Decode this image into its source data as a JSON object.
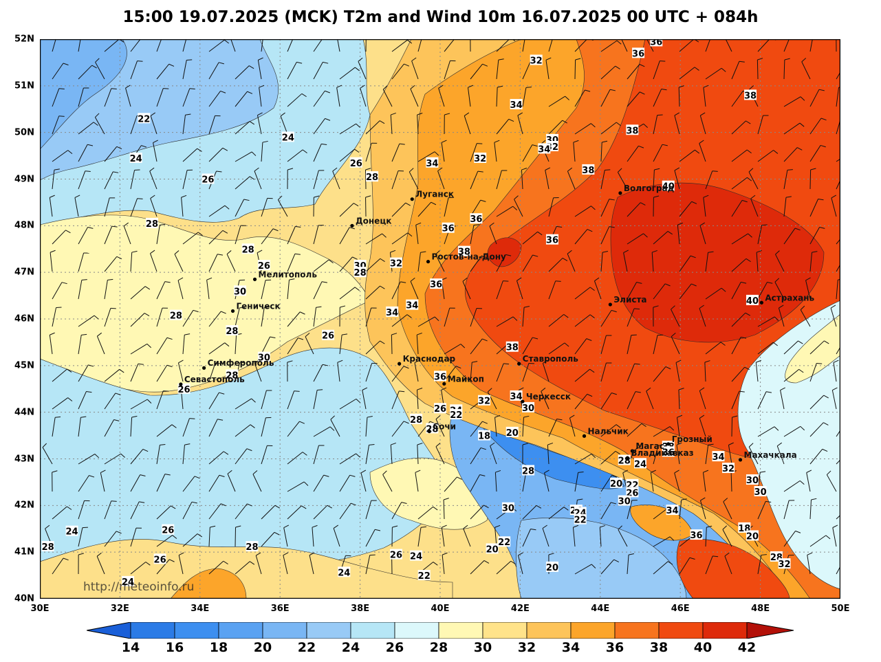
{
  "title": "15:00 19.07.2025 (MCK) T2m and Wind 10m 16.07.2025 00 UTC + 084h",
  "watermark": "http://meteoinfo.ru",
  "lat_labels": [
    "52N",
    "51N",
    "50N",
    "49N",
    "48N",
    "47N",
    "46N",
    "45N",
    "44N",
    "43N",
    "42N",
    "41N",
    "40N"
  ],
  "lon_labels": [
    "30E",
    "32E",
    "34E",
    "36E",
    "38E",
    "40E",
    "42E",
    "44E",
    "46E",
    "48E",
    "50E"
  ],
  "colorbar": {
    "labels": [
      "14",
      "16",
      "18",
      "20",
      "22",
      "24",
      "26",
      "28",
      "30",
      "32",
      "34",
      "36",
      "38",
      "40",
      "42"
    ],
    "colors": [
      "#2b7be6",
      "#3d8ff0",
      "#5aa2f2",
      "#79b6f4",
      "#98caf6",
      "#b6e6f6",
      "#dcf8fb",
      "#fff8b4",
      "#ffe38a",
      "#fdc45a",
      "#fca52a",
      "#f7741e",
      "#f04a10",
      "#de2a0a"
    ],
    "low_color": "#1a5fd8",
    "high_color": "#b31008"
  },
  "cities": [
    {
      "name": "Луганск",
      "lon": 39.3,
      "lat": 48.57
    },
    {
      "name": "Донецк",
      "lon": 37.8,
      "lat": 48.0
    },
    {
      "name": "Волгоград",
      "lon": 44.5,
      "lat": 48.7
    },
    {
      "name": "Ростов-на-Дону",
      "lon": 39.7,
      "lat": 47.23
    },
    {
      "name": "Мелитополь",
      "lon": 35.37,
      "lat": 46.85
    },
    {
      "name": "Геническ",
      "lon": 34.82,
      "lat": 46.17
    },
    {
      "name": "Элиста",
      "lon": 44.25,
      "lat": 46.31
    },
    {
      "name": "Астрахань",
      "lon": 48.03,
      "lat": 46.35
    },
    {
      "name": "Краснодар",
      "lon": 38.98,
      "lat": 45.04
    },
    {
      "name": "Ставрополь",
      "lon": 41.97,
      "lat": 45.04
    },
    {
      "name": "Симферополь",
      "lon": 34.1,
      "lat": 44.95
    },
    {
      "name": "Севастополь",
      "lon": 33.52,
      "lat": 44.6
    },
    {
      "name": "Майкоп",
      "lon": 40.1,
      "lat": 44.61
    },
    {
      "name": "Черкесск",
      "lon": 42.06,
      "lat": 44.23
    },
    {
      "name": "Нальчик",
      "lon": 43.6,
      "lat": 43.49
    },
    {
      "name": "Сочи",
      "lon": 39.73,
      "lat": 43.59
    },
    {
      "name": "Магас",
      "lon": 44.8,
      "lat": 43.17
    },
    {
      "name": "Грозный",
      "lon": 45.7,
      "lat": 43.32
    },
    {
      "name": "Владикавказ",
      "lon": 44.68,
      "lat": 43.02
    },
    {
      "name": "Махачкала",
      "lon": 47.5,
      "lat": 42.98
    }
  ],
  "contour_labels": [
    {
      "text": "22",
      "lon": 32.6,
      "lat": 50.3
    },
    {
      "text": "24",
      "lon": 32.4,
      "lat": 49.45
    },
    {
      "text": "24",
      "lon": 36.2,
      "lat": 49.9
    },
    {
      "text": "26",
      "lon": 34.2,
      "lat": 49.0
    },
    {
      "text": "26",
      "lon": 37.9,
      "lat": 49.35
    },
    {
      "text": "28",
      "lon": 38.3,
      "lat": 49.05
    },
    {
      "text": "28",
      "lon": 32.8,
      "lat": 48.05
    },
    {
      "text": "28",
      "lon": 35.2,
      "lat": 47.5
    },
    {
      "text": "26",
      "lon": 35.6,
      "lat": 47.15
    },
    {
      "text": "30",
      "lon": 35.0,
      "lat": 46.6
    },
    {
      "text": "28",
      "lon": 33.4,
      "lat": 46.08
    },
    {
      "text": "28",
      "lon": 34.8,
      "lat": 45.75
    },
    {
      "text": "30",
      "lon": 35.6,
      "lat": 45.18
    },
    {
      "text": "28",
      "lon": 34.8,
      "lat": 44.8
    },
    {
      "text": "26",
      "lon": 33.6,
      "lat": 44.5
    },
    {
      "text": "26",
      "lon": 37.2,
      "lat": 45.65
    },
    {
      "text": "30",
      "lon": 38.0,
      "lat": 47.15
    },
    {
      "text": "28",
      "lon": 38.0,
      "lat": 47.0
    },
    {
      "text": "32",
      "lon": 38.9,
      "lat": 47.2
    },
    {
      "text": "34",
      "lon": 38.8,
      "lat": 46.15
    },
    {
      "text": "34",
      "lon": 39.3,
      "lat": 46.3
    },
    {
      "text": "36",
      "lon": 39.9,
      "lat": 46.75
    },
    {
      "text": "36",
      "lon": 40.2,
      "lat": 47.95
    },
    {
      "text": "38",
      "lon": 40.6,
      "lat": 47.45
    },
    {
      "text": "36",
      "lon": 40.9,
      "lat": 48.15
    },
    {
      "text": "34",
      "lon": 39.8,
      "lat": 49.35
    },
    {
      "text": "32",
      "lon": 41.0,
      "lat": 49.45
    },
    {
      "text": "34",
      "lon": 41.9,
      "lat": 50.6
    },
    {
      "text": "32",
      "lon": 42.4,
      "lat": 51.55
    },
    {
      "text": "30",
      "lon": 42.8,
      "lat": 49.85
    },
    {
      "text": "32",
      "lon": 42.8,
      "lat": 49.7
    },
    {
      "text": "34",
      "lon": 42.6,
      "lat": 49.65
    },
    {
      "text": "38",
      "lon": 43.7,
      "lat": 49.2
    },
    {
      "text": "38",
      "lon": 44.8,
      "lat": 50.05
    },
    {
      "text": "36",
      "lon": 44.95,
      "lat": 51.7
    },
    {
      "text": "36",
      "lon": 45.4,
      "lat": 51.95
    },
    {
      "text": "38",
      "lon": 47.75,
      "lat": 50.8
    },
    {
      "text": "40",
      "lon": 45.7,
      "lat": 48.85
    },
    {
      "text": "36",
      "lon": 42.8,
      "lat": 47.7
    },
    {
      "text": "38",
      "lon": 41.8,
      "lat": 45.4
    },
    {
      "text": "40",
      "lon": 47.8,
      "lat": 46.4
    },
    {
      "text": "36",
      "lon": 40.0,
      "lat": 44.77
    },
    {
      "text": "34",
      "lon": 41.9,
      "lat": 44.35
    },
    {
      "text": "32",
      "lon": 41.1,
      "lat": 44.25
    },
    {
      "text": "30",
      "lon": 42.2,
      "lat": 44.1
    },
    {
      "text": "26",
      "lon": 40.0,
      "lat": 44.08
    },
    {
      "text": "24",
      "lon": 40.4,
      "lat": 44.05
    },
    {
      "text": "22",
      "lon": 40.4,
      "lat": 43.95
    },
    {
      "text": "28",
      "lon": 39.4,
      "lat": 43.85
    },
    {
      "text": "28",
      "lon": 39.8,
      "lat": 43.65
    },
    {
      "text": "18",
      "lon": 41.1,
      "lat": 43.5
    },
    {
      "text": "20",
      "lon": 41.8,
      "lat": 43.57
    },
    {
      "text": "38",
      "lon": 45.7,
      "lat": 43.27
    },
    {
      "text": "36",
      "lon": 45.7,
      "lat": 43.15
    },
    {
      "text": "28",
      "lon": 44.6,
      "lat": 42.97
    },
    {
      "text": "24",
      "lon": 45.0,
      "lat": 42.9
    },
    {
      "text": "34",
      "lon": 46.95,
      "lat": 43.05
    },
    {
      "text": "32",
      "lon": 47.2,
      "lat": 42.8
    },
    {
      "text": "30",
      "lon": 47.8,
      "lat": 42.55
    },
    {
      "text": "30",
      "lon": 48.0,
      "lat": 42.3
    },
    {
      "text": "20",
      "lon": 44.4,
      "lat": 42.48
    },
    {
      "text": "22",
      "lon": 44.8,
      "lat": 42.45
    },
    {
      "text": "26",
      "lon": 44.8,
      "lat": 42.28
    },
    {
      "text": "30",
      "lon": 44.6,
      "lat": 42.1
    },
    {
      "text": "28",
      "lon": 42.2,
      "lat": 42.75
    },
    {
      "text": "30",
      "lon": 41.7,
      "lat": 41.95
    },
    {
      "text": "26",
      "lon": 43.4,
      "lat": 41.9
    },
    {
      "text": "24",
      "lon": 43.5,
      "lat": 41.85
    },
    {
      "text": "22",
      "lon": 43.5,
      "lat": 41.7
    },
    {
      "text": "34",
      "lon": 45.8,
      "lat": 41.9
    },
    {
      "text": "36",
      "lon": 46.4,
      "lat": 41.37
    },
    {
      "text": "18",
      "lon": 47.6,
      "lat": 41.52
    },
    {
      "text": "20",
      "lon": 47.8,
      "lat": 41.35
    },
    {
      "text": "28",
      "lon": 48.4,
      "lat": 40.9
    },
    {
      "text": "32",
      "lon": 48.6,
      "lat": 40.75
    },
    {
      "text": "22",
      "lon": 41.6,
      "lat": 41.22
    },
    {
      "text": "20",
      "lon": 41.3,
      "lat": 41.07
    },
    {
      "text": "20",
      "lon": 42.8,
      "lat": 40.68
    },
    {
      "text": "26",
      "lon": 38.9,
      "lat": 40.95
    },
    {
      "text": "24",
      "lon": 39.4,
      "lat": 40.92
    },
    {
      "text": "22",
      "lon": 39.6,
      "lat": 40.5
    },
    {
      "text": "24",
      "lon": 37.6,
      "lat": 40.57
    },
    {
      "text": "28",
      "lon": 35.3,
      "lat": 41.12
    },
    {
      "text": "26",
      "lon": 33.2,
      "lat": 41.48
    },
    {
      "text": "26",
      "lon": 33.0,
      "lat": 40.85
    },
    {
      "text": "24",
      "lon": 30.8,
      "lat": 41.45
    },
    {
      "text": "28",
      "lon": 30.2,
      "lat": 41.12
    },
    {
      "text": "24",
      "lon": 32.2,
      "lat": 40.37
    }
  ]
}
